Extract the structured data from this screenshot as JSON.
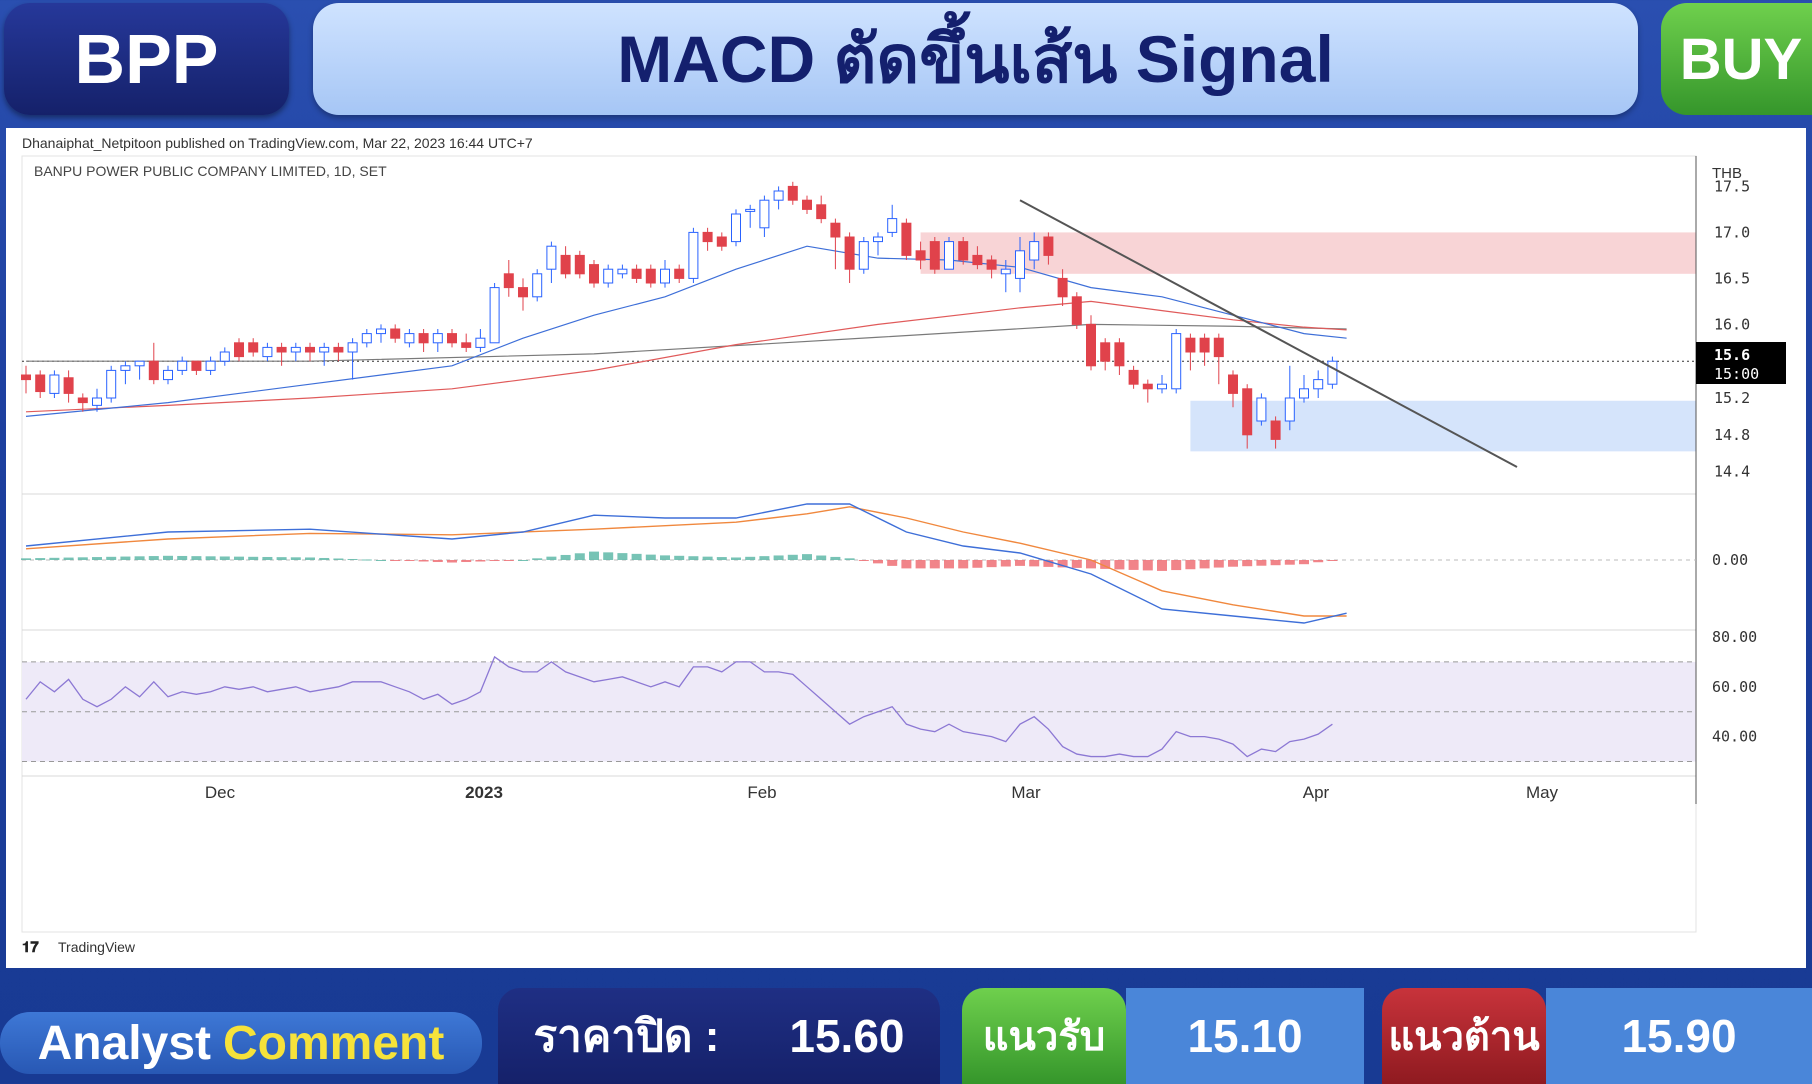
{
  "header": {
    "ticker": "BPP",
    "headline": "MACD ตัดขึ้นเส้น Signal",
    "signal": "BUY"
  },
  "chart": {
    "published_line": "Dhanaiphat_Netpitoon published on TradingView.com, Mar 22, 2023 16:44 UTC+7",
    "symbol_line": "BANPU POWER PUBLIC COMPANY LIMITED, 1D, SET",
    "currency": "THB",
    "last_price_label": "15.6",
    "countdown_label": "15:00",
    "brand": "TradingView",
    "colors": {
      "up": "#2962ff",
      "down": "#e0424b",
      "ma_fast": "#3e6fd8",
      "ma_mid": "#e05a5a",
      "ma_slow": "#7a7a7a",
      "macd": "#3e6fd8",
      "signal": "#f0883e",
      "rsi": "#8c78d4"
    }
  },
  "chart_data": {
    "type": "line",
    "subtype": "candlestick",
    "price_axis_ticks": [
      "17.5",
      "17.0",
      "16.5",
      "16.0",
      "15.2",
      "14.8",
      "14.4"
    ],
    "macd_axis_ticks": [
      "0.00"
    ],
    "rsi_axis_ticks": [
      "80.00",
      "60.00",
      "40.00"
    ],
    "time_axis_ticks": [
      "Dec",
      "2023",
      "Feb",
      "Mar",
      "Apr",
      "May"
    ],
    "price_ylim": [
      14.2,
      17.7
    ],
    "rsi_ylim": [
      25,
      82
    ],
    "resistance_zone": [
      16.55,
      17.0
    ],
    "support_zone": [
      14.62,
      15.17
    ],
    "last_price": 15.6,
    "trendline": [
      [
        70,
        17.35
      ],
      [
        105,
        14.45
      ]
    ],
    "candles": [
      [
        0,
        15.45,
        15.4,
        15.55,
        15.25
      ],
      [
        1,
        15.45,
        15.27,
        15.5,
        15.2
      ],
      [
        2,
        15.25,
        15.45,
        15.5,
        15.2
      ],
      [
        3,
        15.42,
        15.25,
        15.5,
        15.15
      ],
      [
        4,
        15.2,
        15.15,
        15.25,
        15.05
      ],
      [
        5,
        15.12,
        15.2,
        15.3,
        15.05
      ],
      [
        6,
        15.2,
        15.5,
        15.55,
        15.15
      ],
      [
        7,
        15.5,
        15.55,
        15.6,
        15.35
      ],
      [
        8,
        15.55,
        15.6,
        15.6,
        15.4
      ],
      [
        9,
        15.6,
        15.4,
        15.8,
        15.35
      ],
      [
        10,
        15.4,
        15.5,
        15.55,
        15.35
      ],
      [
        11,
        15.5,
        15.6,
        15.65,
        15.45
      ],
      [
        12,
        15.6,
        15.5,
        15.6,
        15.45
      ],
      [
        13,
        15.5,
        15.6,
        15.65,
        15.45
      ],
      [
        14,
        15.6,
        15.7,
        15.75,
        15.55
      ],
      [
        15,
        15.8,
        15.65,
        15.85,
        15.6
      ],
      [
        16,
        15.8,
        15.7,
        15.85,
        15.65
      ],
      [
        17,
        15.65,
        15.75,
        15.8,
        15.6
      ],
      [
        18,
        15.75,
        15.7,
        15.8,
        15.55
      ],
      [
        19,
        15.7,
        15.75,
        15.8,
        15.6
      ],
      [
        20,
        15.75,
        15.7,
        15.8,
        15.6
      ],
      [
        21,
        15.7,
        15.75,
        15.8,
        15.55
      ],
      [
        22,
        15.75,
        15.7,
        15.8,
        15.6
      ],
      [
        23,
        15.7,
        15.8,
        15.85,
        15.4
      ],
      [
        24,
        15.8,
        15.9,
        15.95,
        15.75
      ],
      [
        25,
        15.9,
        15.95,
        16.0,
        15.8
      ],
      [
        26,
        15.95,
        15.85,
        16.0,
        15.8
      ],
      [
        27,
        15.8,
        15.9,
        15.95,
        15.75
      ],
      [
        28,
        15.9,
        15.8,
        15.95,
        15.7
      ],
      [
        29,
        15.8,
        15.9,
        15.95,
        15.7
      ],
      [
        30,
        15.9,
        15.8,
        15.95,
        15.75
      ],
      [
        31,
        15.8,
        15.75,
        15.9,
        15.7
      ],
      [
        32,
        15.75,
        15.85,
        15.95,
        15.7
      ],
      [
        33,
        15.8,
        16.4,
        16.45,
        15.8
      ],
      [
        34,
        16.55,
        16.4,
        16.7,
        16.3
      ],
      [
        35,
        16.4,
        16.3,
        16.5,
        16.15
      ],
      [
        36,
        16.3,
        16.55,
        16.6,
        16.25
      ],
      [
        37,
        16.6,
        16.85,
        16.9,
        16.45
      ],
      [
        38,
        16.75,
        16.55,
        16.85,
        16.5
      ],
      [
        39,
        16.75,
        16.55,
        16.8,
        16.5
      ],
      [
        40,
        16.65,
        16.45,
        16.7,
        16.4
      ],
      [
        41,
        16.45,
        16.6,
        16.65,
        16.4
      ],
      [
        42,
        16.55,
        16.6,
        16.65,
        16.5
      ],
      [
        43,
        16.6,
        16.5,
        16.65,
        16.45
      ],
      [
        44,
        16.6,
        16.45,
        16.65,
        16.4
      ],
      [
        45,
        16.45,
        16.6,
        16.7,
        16.4
      ],
      [
        46,
        16.6,
        16.5,
        16.65,
        16.45
      ],
      [
        47,
        16.5,
        17.0,
        17.05,
        16.45
      ],
      [
        48,
        17.0,
        16.9,
        17.05,
        16.8
      ],
      [
        49,
        16.95,
        16.85,
        17.0,
        16.8
      ],
      [
        50,
        16.9,
        17.2,
        17.25,
        16.85
      ],
      [
        51,
        17.25,
        17.25,
        17.3,
        17.05
      ],
      [
        52,
        17.05,
        17.35,
        17.4,
        16.95
      ],
      [
        53,
        17.35,
        17.45,
        17.5,
        17.25
      ],
      [
        54,
        17.5,
        17.35,
        17.55,
        17.3
      ],
      [
        55,
        17.35,
        17.25,
        17.4,
        17.2
      ],
      [
        56,
        17.3,
        17.15,
        17.4,
        17.1
      ],
      [
        57,
        17.1,
        16.95,
        17.15,
        16.6
      ],
      [
        58,
        16.95,
        16.6,
        17.0,
        16.45
      ],
      [
        59,
        16.6,
        16.9,
        16.95,
        16.55
      ],
      [
        60,
        16.9,
        16.95,
        17.0,
        16.75
      ],
      [
        61,
        17.0,
        17.15,
        17.3,
        16.95
      ],
      [
        62,
        17.1,
        16.75,
        17.15,
        16.7
      ],
      [
        63,
        16.8,
        16.7,
        16.9,
        16.6
      ],
      [
        64,
        16.9,
        16.6,
        16.95,
        16.55
      ],
      [
        65,
        16.6,
        16.9,
        16.95,
        16.6
      ],
      [
        66,
        16.9,
        16.7,
        16.95,
        16.65
      ],
      [
        67,
        16.75,
        16.65,
        16.85,
        16.6
      ],
      [
        68,
        16.7,
        16.6,
        16.75,
        16.5
      ],
      [
        69,
        16.55,
        16.6,
        16.7,
        16.35
      ],
      [
        70,
        16.5,
        16.8,
        16.95,
        16.35
      ],
      [
        71,
        16.7,
        16.9,
        17.0,
        16.6
      ],
      [
        72,
        16.95,
        16.75,
        17.0,
        16.65
      ],
      [
        73,
        16.5,
        16.3,
        16.6,
        16.2
      ],
      [
        74,
        16.3,
        16.0,
        16.35,
        15.95
      ],
      [
        75,
        16.0,
        15.55,
        16.1,
        15.5
      ],
      [
        76,
        15.8,
        15.6,
        15.85,
        15.5
      ],
      [
        77,
        15.8,
        15.55,
        15.85,
        15.45
      ],
      [
        78,
        15.5,
        15.35,
        15.55,
        15.3
      ],
      [
        79,
        15.35,
        15.3,
        15.4,
        15.15
      ],
      [
        80,
        15.3,
        15.35,
        15.45,
        15.25
      ],
      [
        81,
        15.3,
        15.9,
        15.95,
        15.25
      ],
      [
        82,
        15.85,
        15.7,
        15.9,
        15.5
      ],
      [
        83,
        15.85,
        15.7,
        15.9,
        15.55
      ],
      [
        84,
        15.85,
        15.65,
        15.9,
        15.35
      ],
      [
        85,
        15.45,
        15.25,
        15.5,
        15.1
      ],
      [
        86,
        15.3,
        14.8,
        15.35,
        14.65
      ],
      [
        87,
        14.95,
        15.2,
        15.25,
        14.9
      ],
      [
        88,
        14.95,
        14.75,
        15.0,
        14.65
      ],
      [
        89,
        14.95,
        15.2,
        15.55,
        14.85
      ],
      [
        90,
        15.2,
        15.3,
        15.45,
        15.15
      ],
      [
        91,
        15.3,
        15.4,
        15.5,
        15.2
      ],
      [
        92,
        15.35,
        15.6,
        15.65,
        15.3
      ]
    ],
    "ma_fast": [
      [
        0,
        15.0
      ],
      [
        10,
        15.15
      ],
      [
        20,
        15.35
      ],
      [
        30,
        15.55
      ],
      [
        35,
        15.85
      ],
      [
        40,
        16.1
      ],
      [
        45,
        16.3
      ],
      [
        50,
        16.6
      ],
      [
        55,
        16.85
      ],
      [
        60,
        16.72
      ],
      [
        65,
        16.7
      ],
      [
        70,
        16.62
      ],
      [
        75,
        16.4
      ],
      [
        80,
        16.3
      ],
      [
        85,
        16.1
      ],
      [
        90,
        15.9
      ],
      [
        93,
        15.85
      ]
    ],
    "ma_mid": [
      [
        0,
        15.05
      ],
      [
        10,
        15.12
      ],
      [
        20,
        15.2
      ],
      [
        30,
        15.3
      ],
      [
        40,
        15.5
      ],
      [
        50,
        15.78
      ],
      [
        60,
        16.0
      ],
      [
        70,
        16.18
      ],
      [
        75,
        16.25
      ],
      [
        80,
        16.15
      ],
      [
        85,
        16.05
      ],
      [
        90,
        15.97
      ],
      [
        93,
        15.94
      ]
    ],
    "ma_slow": [
      [
        0,
        15.6
      ],
      [
        20,
        15.6
      ],
      [
        40,
        15.68
      ],
      [
        60,
        15.86
      ],
      [
        75,
        16.0
      ],
      [
        85,
        15.98
      ],
      [
        93,
        15.95
      ]
    ],
    "macd_line": [
      [
        0,
        0.1
      ],
      [
        10,
        0.2
      ],
      [
        20,
        0.22
      ],
      [
        30,
        0.15
      ],
      [
        35,
        0.2
      ],
      [
        40,
        0.32
      ],
      [
        45,
        0.3
      ],
      [
        50,
        0.3
      ],
      [
        55,
        0.4
      ],
      [
        58,
        0.4
      ],
      [
        62,
        0.2
      ],
      [
        66,
        0.1
      ],
      [
        70,
        0.05
      ],
      [
        75,
        -0.1
      ],
      [
        80,
        -0.35
      ],
      [
        85,
        -0.4
      ],
      [
        90,
        -0.45
      ],
      [
        93,
        -0.38
      ]
    ],
    "signal_line": [
      [
        0,
        0.08
      ],
      [
        10,
        0.15
      ],
      [
        20,
        0.19
      ],
      [
        30,
        0.18
      ],
      [
        40,
        0.22
      ],
      [
        50,
        0.27
      ],
      [
        55,
        0.33
      ],
      [
        58,
        0.38
      ],
      [
        62,
        0.3
      ],
      [
        66,
        0.2
      ],
      [
        70,
        0.12
      ],
      [
        75,
        0.0
      ],
      [
        80,
        -0.22
      ],
      [
        85,
        -0.32
      ],
      [
        90,
        -0.4
      ],
      [
        93,
        -0.4
      ]
    ],
    "rsi": [
      [
        0,
        55
      ],
      [
        1,
        62
      ],
      [
        2,
        58
      ],
      [
        3,
        63
      ],
      [
        4,
        55
      ],
      [
        5,
        52
      ],
      [
        6,
        55
      ],
      [
        7,
        60
      ],
      [
        8,
        56
      ],
      [
        9,
        62
      ],
      [
        10,
        56
      ],
      [
        11,
        58
      ],
      [
        12,
        57
      ],
      [
        13,
        58
      ],
      [
        14,
        60
      ],
      [
        15,
        59
      ],
      [
        16,
        60
      ],
      [
        17,
        58
      ],
      [
        18,
        59
      ],
      [
        19,
        60
      ],
      [
        20,
        58
      ],
      [
        21,
        59
      ],
      [
        22,
        60
      ],
      [
        23,
        62
      ],
      [
        24,
        62
      ],
      [
        25,
        62
      ],
      [
        26,
        60
      ],
      [
        27,
        58
      ],
      [
        28,
        55
      ],
      [
        29,
        57
      ],
      [
        30,
        53
      ],
      [
        31,
        55
      ],
      [
        32,
        58
      ],
      [
        33,
        72
      ],
      [
        34,
        68
      ],
      [
        35,
        66
      ],
      [
        36,
        66
      ],
      [
        37,
        70
      ],
      [
        38,
        66
      ],
      [
        39,
        64
      ],
      [
        40,
        62
      ],
      [
        41,
        63
      ],
      [
        42,
        64
      ],
      [
        43,
        62
      ],
      [
        44,
        60
      ],
      [
        45,
        62
      ],
      [
        46,
        60
      ],
      [
        47,
        68
      ],
      [
        48,
        68
      ],
      [
        49,
        66
      ],
      [
        50,
        70
      ],
      [
        51,
        70
      ],
      [
        52,
        66
      ],
      [
        53,
        66
      ],
      [
        54,
        65
      ],
      [
        55,
        60
      ],
      [
        56,
        55
      ],
      [
        57,
        50
      ],
      [
        58,
        45
      ],
      [
        59,
        48
      ],
      [
        60,
        50
      ],
      [
        61,
        52
      ],
      [
        62,
        45
      ],
      [
        63,
        43
      ],
      [
        64,
        42
      ],
      [
        65,
        45
      ],
      [
        66,
        42
      ],
      [
        67,
        41
      ],
      [
        68,
        40
      ],
      [
        69,
        38
      ],
      [
        70,
        45
      ],
      [
        71,
        48
      ],
      [
        72,
        43
      ],
      [
        73,
        36
      ],
      [
        74,
        33
      ],
      [
        75,
        32
      ],
      [
        76,
        32
      ],
      [
        77,
        33
      ],
      [
        78,
        32
      ],
      [
        79,
        32
      ],
      [
        80,
        35
      ],
      [
        81,
        42
      ],
      [
        82,
        40
      ],
      [
        83,
        40
      ],
      [
        84,
        39
      ],
      [
        85,
        37
      ],
      [
        86,
        32
      ],
      [
        87,
        35
      ],
      [
        88,
        34
      ],
      [
        89,
        38
      ],
      [
        90,
        39
      ],
      [
        91,
        41
      ],
      [
        92,
        45
      ]
    ]
  },
  "footer": {
    "analyst_1": "Analyst",
    "analyst_2": "Comment",
    "close_label": "ราคาปิด :",
    "close_value": "15.60",
    "support_label": "แนวรับ",
    "support_value": "15.10",
    "resistance_label": "แนวต้าน",
    "resistance_value": "15.90"
  }
}
